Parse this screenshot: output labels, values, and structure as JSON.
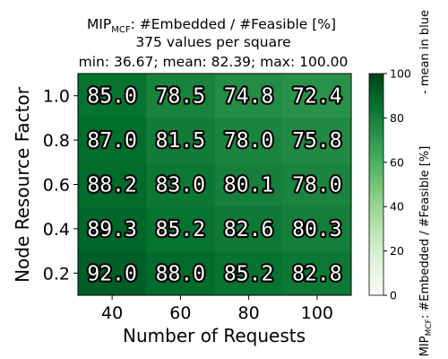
{
  "chart_data": {
    "type": "heatmap",
    "title": {
      "mip": "MIP",
      "mip_sub": "MCF",
      "title_rest": ": #Embedded / #Feasible [%]",
      "line2": "375 values per square",
      "line3": "min: 36.67; mean: 82.39; max: 100.00"
    },
    "xlabel": "Number of Requests",
    "ylabel": "Node Resource Factor",
    "x_categories": [
      "40",
      "60",
      "80",
      "100"
    ],
    "y_categories": [
      "0.2",
      "0.4",
      "0.6",
      "0.8",
      "1.0"
    ],
    "values": [
      [
        92.0,
        88.0,
        85.2,
        82.8
      ],
      [
        89.3,
        85.2,
        82.6,
        80.3
      ],
      [
        88.2,
        83.0,
        80.1,
        78.0
      ],
      [
        87.0,
        81.5,
        78.0,
        75.8
      ],
      [
        85.0,
        78.5,
        74.8,
        72.4
      ]
    ],
    "value_labels": [
      [
        "92.0",
        "88.0",
        "85.2",
        "82.8"
      ],
      [
        "89.3",
        "85.2",
        "82.6",
        "80.3"
      ],
      [
        "88.2",
        "83.0",
        "80.1",
        "78.0"
      ],
      [
        "87.0",
        "81.5",
        "78.0",
        "75.8"
      ],
      [
        "85.0",
        "78.5",
        "74.8",
        "72.4"
      ]
    ],
    "colorbar": {
      "range": [
        0,
        100
      ],
      "ticks": [
        "0",
        "20",
        "40",
        "60",
        "80",
        "100"
      ],
      "label_mip": "MIP",
      "label_sub": "MCF",
      "label_rest": ": #Embedded / #Feasible [%]",
      "mean_label": "- mean in blue",
      "colormap": "Greens"
    }
  }
}
